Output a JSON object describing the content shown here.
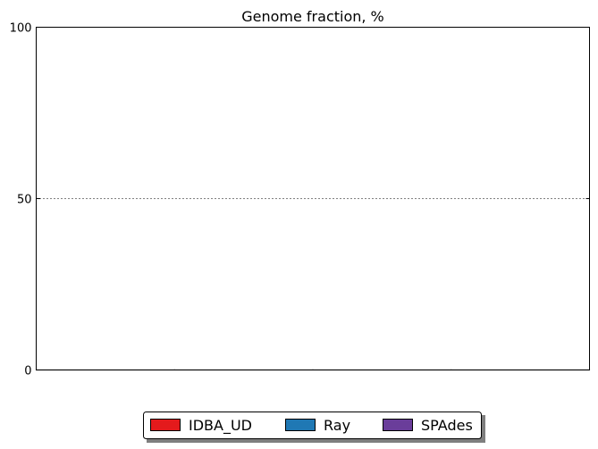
{
  "chart_data": {
    "type": "bar",
    "title": "Genome fraction, %",
    "xlabel": "",
    "ylabel": "",
    "ylim": [
      0,
      100
    ],
    "yticks": [
      0,
      50,
      100
    ],
    "grid": "horizontal-dotted",
    "legend_position": "bottom-center",
    "categories": [],
    "series": [
      {
        "name": "IDBA_UD",
        "color": "#e41a1c",
        "values": []
      },
      {
        "name": "Ray",
        "color": "#1f78b4",
        "values": []
      },
      {
        "name": "SPAdes",
        "color": "#6a3d9a",
        "values": []
      }
    ],
    "baseline_ticks": 4
  }
}
